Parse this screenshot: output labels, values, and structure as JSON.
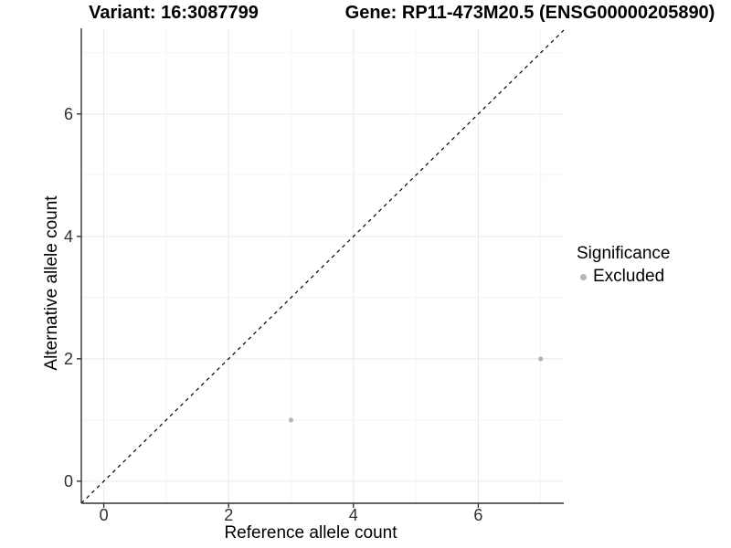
{
  "chart_data": {
    "type": "scatter",
    "titles": {
      "variant": "Variant: 16:3087799",
      "gene": "Gene: RP11-473M20.5 (ENSG00000205890)"
    },
    "xlabel": "Reference allele count",
    "ylabel": "Alternative allele count",
    "xlim": [
      -0.36,
      7.37
    ],
    "ylim": [
      -0.36,
      7.4
    ],
    "xticks": [
      0,
      2,
      4,
      6
    ],
    "yticks": [
      0,
      2,
      4,
      6
    ],
    "xminor": [
      1,
      3,
      5,
      7
    ],
    "yminor": [
      1,
      3,
      5,
      7
    ],
    "grid": "major+minor",
    "identity_line": {
      "slope": 1,
      "intercept": 0,
      "style": "dashed",
      "color": "#000000"
    },
    "points": [
      {
        "x": 3,
        "y": 1,
        "significance": "Excluded"
      },
      {
        "x": 7,
        "y": 2,
        "significance": "Excluded"
      }
    ],
    "point_color": "#b5b5b5",
    "point_radius": 2.6,
    "legend": {
      "title": "Significance",
      "position": "right",
      "items": [
        {
          "label": "Excluded",
          "color": "#b5b5b5"
        }
      ]
    },
    "colors": {
      "background": "#ffffff",
      "grid_major": "#e9e9e9",
      "grid_minor": "#f5f5f5",
      "axis": "#333333",
      "tick_label": "#303030"
    }
  }
}
